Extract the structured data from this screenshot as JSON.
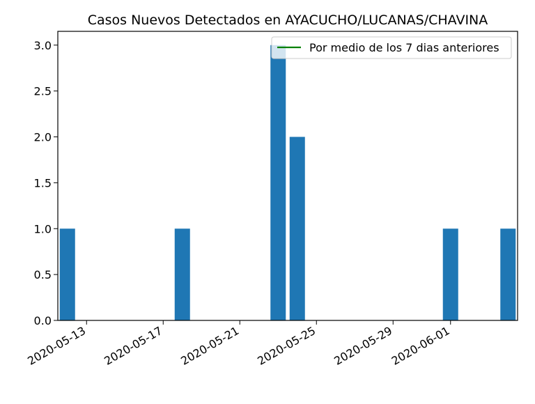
{
  "chart_data": {
    "type": "bar",
    "title": "Casos Nuevos Detectados en AYACUCHO/LUCANAS/CHAVINA",
    "xlabel": "",
    "ylabel": "",
    "x_range": [
      "2020-05-11",
      "2020-06-04"
    ],
    "ylim": [
      0,
      3.15
    ],
    "y_ticks": [
      0.0,
      0.5,
      1.0,
      1.5,
      2.0,
      2.5,
      3.0
    ],
    "y_tick_labels": [
      "0.0",
      "0.5",
      "1.0",
      "1.5",
      "2.0",
      "2.5",
      "3.0"
    ],
    "x_ticks": [
      "2020-05-13",
      "2020-05-17",
      "2020-05-21",
      "2020-05-25",
      "2020-05-29",
      "2020-06-01"
    ],
    "series": [
      {
        "type": "bar",
        "color": "#1f77b4",
        "points": [
          {
            "x": "2020-05-12",
            "y": 1
          },
          {
            "x": "2020-05-18",
            "y": 1
          },
          {
            "x": "2020-05-23",
            "y": 3
          },
          {
            "x": "2020-05-24",
            "y": 2
          },
          {
            "x": "2020-06-01",
            "y": 1
          },
          {
            "x": "2020-06-04",
            "y": 1
          }
        ]
      },
      {
        "type": "line",
        "name": "Por medio de los 7 dias anteriores",
        "color": "#008000",
        "points": []
      }
    ],
    "legend": {
      "placement": "top-right",
      "entries": [
        "Por medio de los 7 dias anteriores"
      ]
    },
    "grid": false
  }
}
